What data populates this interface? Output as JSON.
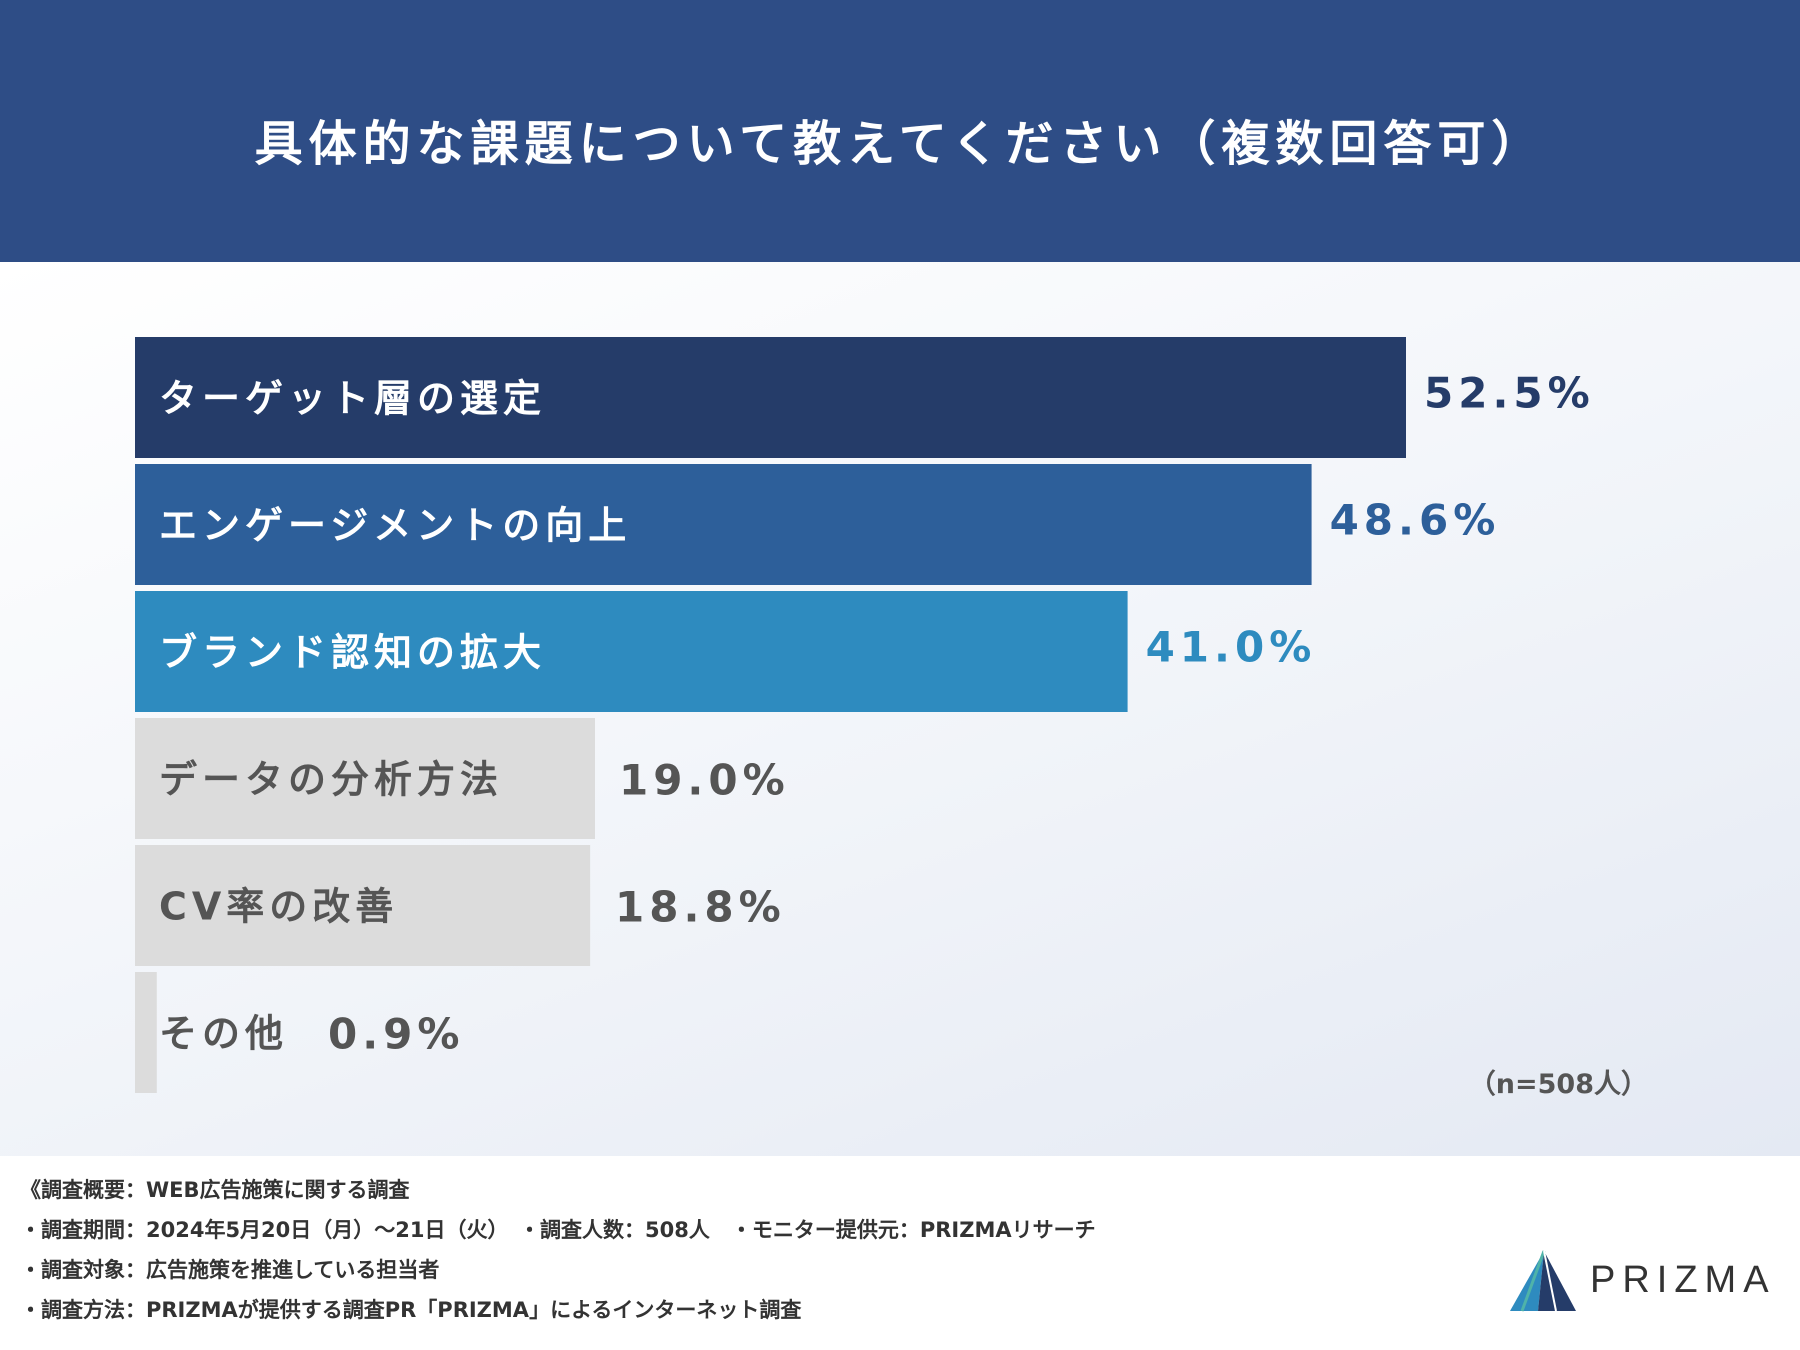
{
  "header": {
    "title": "具体的な課題について教えてください（複数回答可）"
  },
  "chart_data": {
    "type": "bar",
    "orientation": "horizontal",
    "categories": [
      "ターゲット層の選定",
      "エンゲージメントの向上",
      "ブランド認知の拡大",
      "データの分析方法",
      "CV率の改善",
      "その他"
    ],
    "values": [
      52.5,
      48.6,
      41.0,
      19.0,
      18.8,
      0.9
    ],
    "value_labels": [
      "52.5%",
      "48.6%",
      "41.0%",
      "19.0%",
      "18.8%",
      "0.9%"
    ],
    "bar_colors": [
      "#253c69",
      "#2d5f9a",
      "#2e8bbf",
      "#dcdcdc",
      "#dcdcdc",
      "#dcdcdc"
    ],
    "label_colors": [
      "#ffffff",
      "#ffffff",
      "#ffffff",
      "#555555",
      "#555555",
      "#555555"
    ],
    "value_colors": [
      "#253c69",
      "#2d5f9a",
      "#2e8bbf",
      "#555555",
      "#555555",
      "#555555"
    ],
    "unit": "%",
    "grid": false,
    "sample_note": "（n=508人）"
  },
  "footer": {
    "summary": "《調査概要：WEB広告施策に関する調査",
    "period": "・調査期間：2024年5月20日（月）～21日（火）　・調査人数：508人　・モニター提供元：PRIZMAリサーチ",
    "target": "・調査対象：広告施策を推進している担当者",
    "method": "・調査方法：PRIZMAが提供する調査PR「PRIZMA」によるインターネット調査"
  },
  "logo": {
    "text": "PRIZMA",
    "colors": [
      "#2e8bbf",
      "#253c69",
      "#4fb3a9"
    ]
  }
}
